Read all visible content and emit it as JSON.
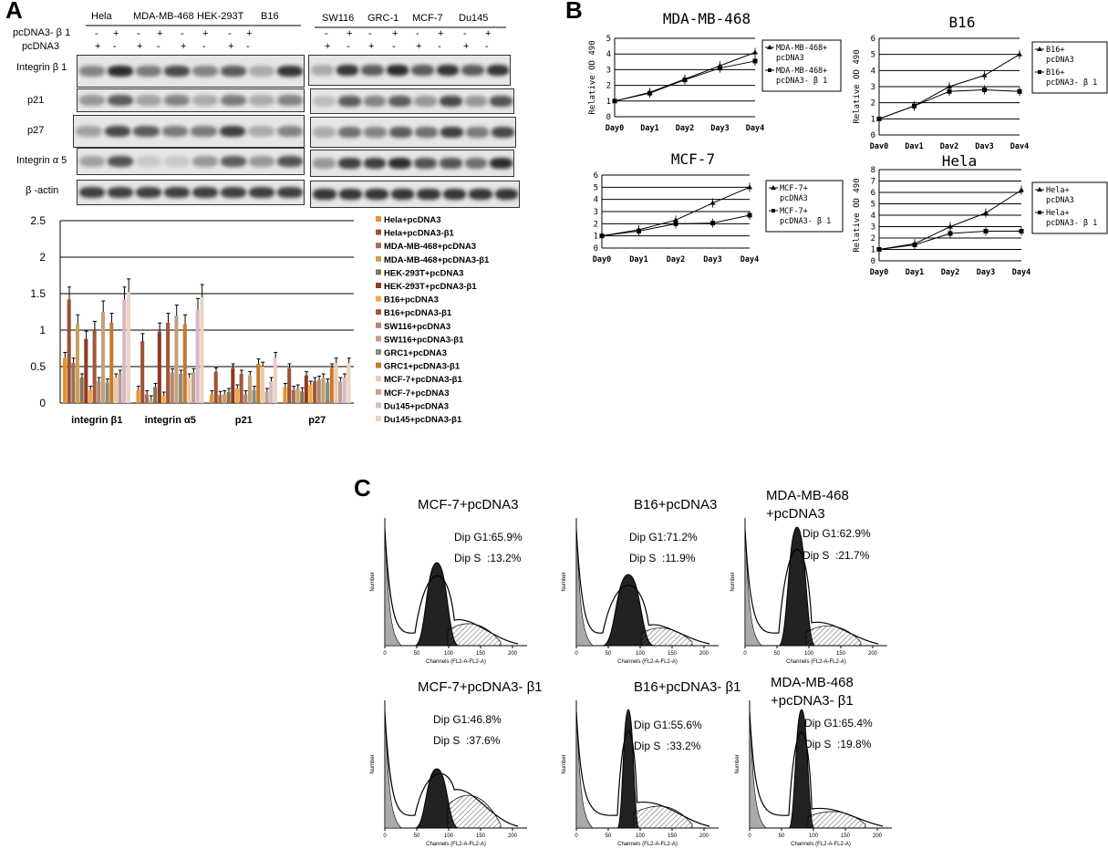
{
  "panels": {
    "a": "A",
    "b": "B",
    "c": "C"
  },
  "blot": {
    "cells_left": [
      "Hela",
      "MDA-MB-468",
      "HEK-293T",
      "B16"
    ],
    "cells_right": [
      "SW116",
      "GRC-1",
      "MCF-7",
      "Du145"
    ],
    "row_pcdna3b1": "pcDNA3- β 1",
    "row_pcdna3": "pcDNA3",
    "proteins": [
      "Integrin β 1",
      "p21",
      "p27",
      "Integrin α 5",
      "β -actin"
    ],
    "sign_plus": "+",
    "sign_minus": "-"
  },
  "chart_data": [
    {
      "type": "bar",
      "categories": [
        "integrin β1",
        "integrin α5",
        "p21",
        "p27"
      ],
      "ylim": [
        0,
        2.5
      ],
      "yticks": [
        "0",
        "0.5",
        "1",
        "1.5",
        "2",
        "2.5"
      ],
      "series": [
        {
          "name": "Hela+pcDNA3",
          "color": "#e8922e",
          "values": [
            0.62,
            0.18,
            0.12,
            0.22
          ]
        },
        {
          "name": "Hela+pcDNA3-β1",
          "color": "#9a5236",
          "values": [
            1.42,
            0.85,
            0.43,
            0.48
          ]
        },
        {
          "name": "MDA-MB-468+pcDNA3",
          "color": "#a26e5a",
          "values": [
            0.55,
            0.12,
            0.11,
            0.18
          ]
        },
        {
          "name": "MDA-MB-468+pcDNA3-β1",
          "color": "#c9a25a",
          "values": [
            1.08,
            0.05,
            0.12,
            0.2
          ]
        },
        {
          "name": "HEK-293T+pcDNA3",
          "color": "#8a7058",
          "values": [
            0.35,
            0.22,
            0.15,
            0.16
          ]
        },
        {
          "name": "HEK-293T+pcDNA3-β1",
          "color": "#8c3a22",
          "values": [
            0.88,
            0.98,
            0.48,
            0.38
          ]
        },
        {
          "name": "B16+pcDNA3",
          "color": "#f5a83c",
          "values": [
            0.18,
            0.1,
            0.2,
            0.25
          ]
        },
        {
          "name": "B16+pcDNA3-β1",
          "color": "#a0583c",
          "values": [
            1.0,
            1.1,
            0.4,
            0.3
          ]
        },
        {
          "name": "SW116+pcDNA3",
          "color": "#b8846a",
          "values": [
            0.3,
            0.42,
            0.12,
            0.32
          ]
        },
        {
          "name": "SW116+pcDNA3-β1",
          "color": "#c4a07e",
          "values": [
            1.25,
            1.2,
            0.38,
            0.35
          ]
        },
        {
          "name": "GRC1+pcDNA3",
          "color": "#8d8a78",
          "values": [
            0.28,
            0.4,
            0.18,
            0.28
          ]
        },
        {
          "name": "GRC1+pcDNA3-β1",
          "color": "#c47a2a",
          "values": [
            1.1,
            1.08,
            0.54,
            0.48
          ]
        },
        {
          "name": "MCF-7+pcDNA3-β1",
          "color": "#f0c8a8",
          "values": [
            0.35,
            0.35,
            0.5,
            0.55
          ]
        },
        {
          "name": "MCF-7+pcDNA3",
          "color": "#c0a094",
          "values": [
            0.4,
            0.42,
            0.15,
            0.3
          ]
        },
        {
          "name": "Du145+pcDNA3",
          "color": "#d8b8c4",
          "values": [
            1.42,
            1.28,
            0.3,
            0.35
          ]
        },
        {
          "name": "Du145+pcDNA3-β1",
          "color": "#ecd2c2",
          "values": [
            1.52,
            1.45,
            0.62,
            0.55
          ]
        }
      ]
    },
    {
      "type": "line",
      "title": "MDA-MB-468",
      "ylabel": "Relative  OD 490",
      "categories": [
        "Day0",
        "Day1",
        "Day2",
        "Day3",
        "Day4"
      ],
      "ylim": [
        0,
        5
      ],
      "yticks": [
        "0",
        "1",
        "2",
        "3",
        "4",
        "5"
      ],
      "series": [
        {
          "name": "MDA-MB-468+ pcDNA3",
          "marker": "triangle",
          "values": [
            1.0,
            1.55,
            2.4,
            3.25,
            4.1
          ]
        },
        {
          "name": "MDA-MB-468+ pcDNA3- β 1",
          "marker": "square",
          "values": [
            1.0,
            1.5,
            2.35,
            3.1,
            3.55
          ]
        }
      ]
    },
    {
      "type": "line",
      "title": "B16",
      "ylabel": "Relative  OD 490",
      "categories": [
        "Day0",
        "Day1",
        "Day2",
        "Day3",
        "Day4"
      ],
      "ylim": [
        0,
        6
      ],
      "yticks": [
        "0",
        "1",
        "2",
        "3",
        "4",
        "5",
        "6"
      ],
      "series": [
        {
          "name": "B16+ pcDNA3",
          "marker": "triangle",
          "values": [
            1.0,
            1.8,
            3.0,
            3.7,
            5.0
          ]
        },
        {
          "name": "B16+ pcDNA3- β 1",
          "marker": "square",
          "values": [
            1.0,
            1.8,
            2.7,
            2.8,
            2.7
          ]
        }
      ]
    },
    {
      "type": "line",
      "title": "MCF-7",
      "ylabel": "Relative  OD 490",
      "categories": [
        "Day0",
        "Day1",
        "Day2",
        "Day3",
        "Day4"
      ],
      "ylim": [
        0,
        6
      ],
      "yticks": [
        "0",
        "1",
        "2",
        "3",
        "4",
        "5",
        "6"
      ],
      "series": [
        {
          "name": "MCF-7+ pcDNA3",
          "marker": "triangle",
          "values": [
            1.0,
            1.5,
            2.3,
            3.7,
            5.0
          ]
        },
        {
          "name": "MCF-7+ pcDNA3- β 1",
          "marker": "square",
          "values": [
            1.0,
            1.4,
            2.0,
            2.05,
            2.7
          ]
        }
      ]
    },
    {
      "type": "line",
      "title": "Hela",
      "ylabel": "Relative  OD 490",
      "categories": [
        "Day0",
        "Day1",
        "Day2",
        "Day3",
        "Day4"
      ],
      "ylim": [
        0,
        8
      ],
      "yticks": [
        "0",
        "1",
        "2",
        "3",
        "4",
        "5",
        "6",
        "7",
        "8"
      ],
      "series": [
        {
          "name": "Hela+ pcDNA3",
          "marker": "triangle",
          "values": [
            1.0,
            1.5,
            3.0,
            4.2,
            6.2
          ]
        },
        {
          "name": "Hela+ pcDNA3- β 1",
          "marker": "square",
          "values": [
            1.0,
            1.4,
            2.4,
            2.6,
            2.6
          ]
        }
      ]
    }
  ],
  "facs": {
    "xlabel": "Channels (FL2-A-FL2-A)",
    "ylabel": "Number",
    "xticks": [
      "0",
      "50",
      "100",
      "150",
      "200"
    ],
    "plots": [
      {
        "title": "MCF-7+pcDNA3",
        "g1": "Dip G1:65.9%",
        "s": "Dip S  :13.2%"
      },
      {
        "title": "B16+pcDNA3",
        "g1": "Dip G1:71.2%",
        "s": "Dip S  :11.9%"
      },
      {
        "title": "MDA-MB-468",
        "title2": "+pcDNA3",
        "g1": "Dip G1:62.9%",
        "s": "Dip S  :21.7%"
      },
      {
        "title": "MCF-7+pcDNA3- β1",
        "g1": "Dip G1:46.8%",
        "s": "Dip S  :37.6%"
      },
      {
        "title": "B16+pcDNA3- β1",
        "g1": "Dip G1:55.6%",
        "s": "Dip S  :33.2%"
      },
      {
        "title": "MDA-MB-468",
        "title2": "+pcDNA3- β1",
        "g1": "Dip G1:65.4%",
        "s": "Dip S  :19.8%"
      }
    ]
  }
}
